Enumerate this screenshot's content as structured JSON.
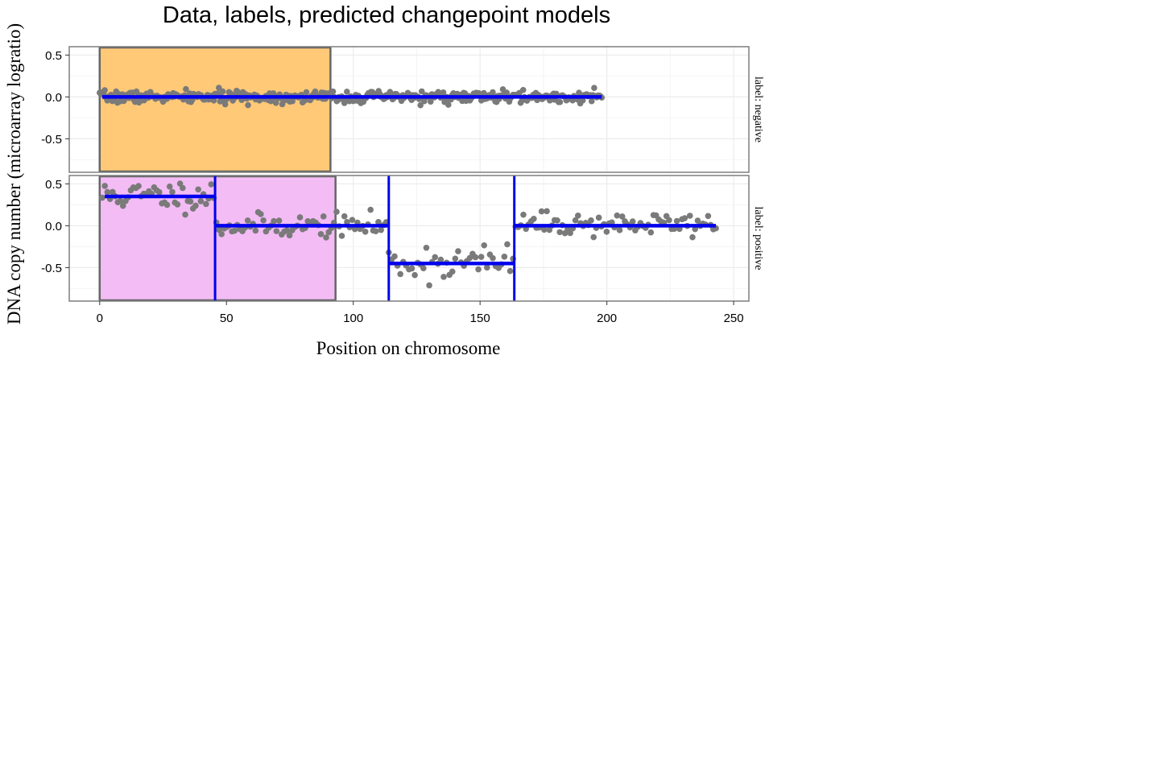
{
  "chart_data": {
    "type": "scatter",
    "title": "Data, labels, predicted changepoint models",
    "xlabel": "Position on chromosome",
    "ylabel": "DNA copy number (microarray logratio)",
    "xlim": [
      -12,
      256
    ],
    "x_ticks": [
      0,
      50,
      100,
      150,
      200,
      250
    ],
    "grid": true,
    "colors": {
      "points": "#7a7a7a",
      "segments": "#0000ee",
      "negative_region": "#ffc978",
      "positive_region": "#f3bcf5",
      "region_border": "#666666",
      "panel_border": "#7f7f7f",
      "grid": "#ececec"
    },
    "panels": [
      {
        "strip": "label: negative",
        "ylim": [
          -0.9,
          0.6
        ],
        "y_ticks": [
          0.5,
          0.0,
          -0.5
        ],
        "y_tick_labels": [
          "0.5",
          "0.0",
          "-0.5"
        ],
        "regions": [
          {
            "xmin": 0,
            "xmax": 91,
            "annotation": "negative"
          }
        ],
        "changepoints": [],
        "segments": [
          {
            "x0": 1,
            "x1": 198,
            "y": 0.0
          }
        ],
        "points": {
          "x_start": 0,
          "x_step": 0.5,
          "n": 397,
          "mean": 0.0,
          "noise": 0.035,
          "seed": 7
        }
      },
      {
        "strip": "label: positive",
        "ylim": [
          -0.9,
          0.6
        ],
        "y_ticks": [
          0.5,
          0.0,
          -0.5
        ],
        "y_tick_labels": [
          "0.5",
          "0.0",
          "-0.5"
        ],
        "regions": [
          {
            "xmin": 0,
            "xmax": 93,
            "annotation": "breakpoint"
          }
        ],
        "changepoints": [
          45.5,
          114,
          163.5
        ],
        "segments": [
          {
            "x0": 2,
            "x1": 45.5,
            "y": 0.35
          },
          {
            "x0": 45.5,
            "x1": 114,
            "y": 0.0
          },
          {
            "x0": 114,
            "x1": 163.5,
            "y": -0.45
          },
          {
            "x0": 163.5,
            "x1": 243,
            "y": 0.0
          }
        ],
        "points": {
          "groups": [
            {
              "x_start": 1,
              "x_end": 45,
              "n": 44,
              "mean": 0.36,
              "noise": 0.09
            },
            {
              "x_start": 46,
              "x_end": 113,
              "n": 66,
              "mean": 0.0,
              "noise": 0.07
            },
            {
              "x_start": 114,
              "x_end": 163,
              "n": 44,
              "mean": -0.44,
              "noise": 0.11
            },
            {
              "x_start": 164,
              "x_end": 243,
              "n": 78,
              "mean": 0.02,
              "noise": 0.07
            }
          ],
          "seed": 11
        }
      }
    ]
  }
}
